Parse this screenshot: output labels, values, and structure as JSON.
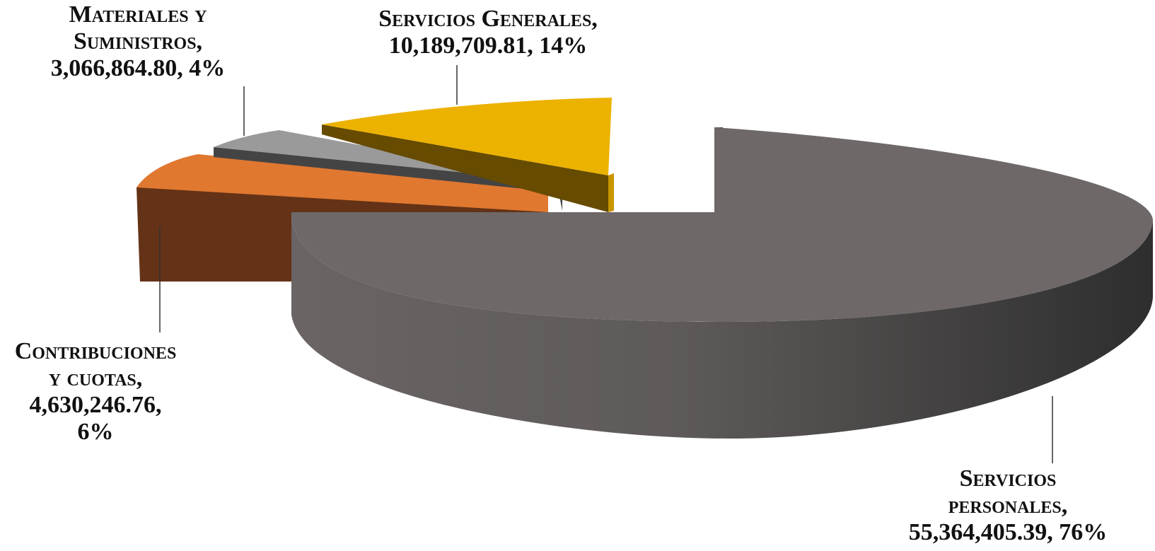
{
  "chart_data": {
    "type": "pie",
    "title": "",
    "style": "3d-exploded",
    "slices": [
      {
        "label_lines": [
          "Servicios",
          "personales,"
        ],
        "value": 55364405.39,
        "value_text": "55,364,405.39",
        "percent_text": "76%",
        "color": "#6e6868"
      },
      {
        "label_lines": [
          "Contribuciones",
          "y cuotas,"
        ],
        "value": 4630246.76,
        "value_text": "4,630,246.76",
        "percent_text": "6%",
        "color": "#e07830"
      },
      {
        "label_lines": [
          "Materiales y",
          "Suministros,"
        ],
        "value": 3066864.8,
        "value_text": "3,066,864.80",
        "percent_text": "4%",
        "color": "#9a9a9a"
      },
      {
        "label_lines": [
          "Servicios Generales,"
        ],
        "value": 10189709.81,
        "value_text": "10,189,709.81",
        "percent_text": "14%",
        "color": "#ecb200"
      }
    ]
  }
}
